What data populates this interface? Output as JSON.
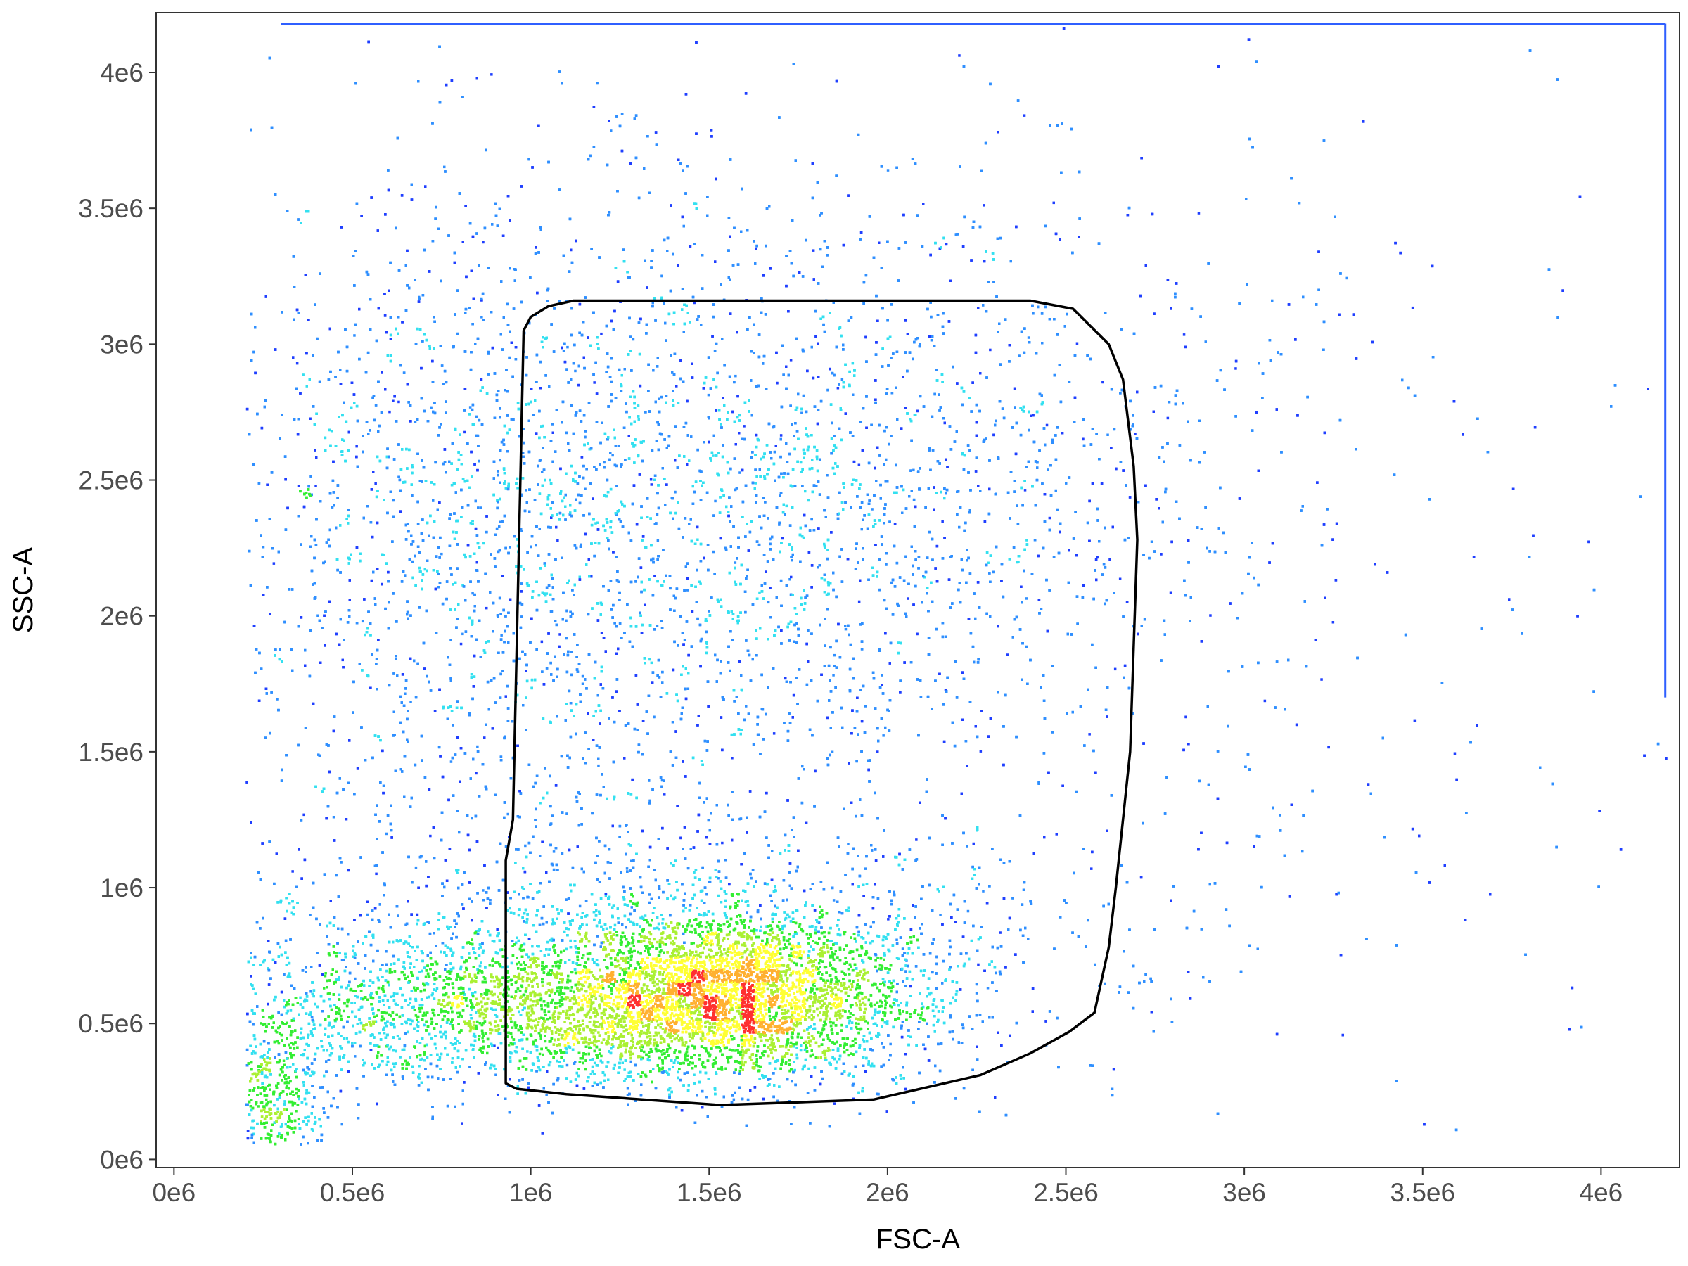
{
  "chart_data": {
    "type": "scatter",
    "subtype": "flow-cytometry-density-plot",
    "title": "",
    "xlabel": "FSC-A",
    "ylabel": "SSC-A",
    "xlim": [
      -50000.0,
      4220000.0
    ],
    "ylim": [
      -30000.0,
      4220000.0
    ],
    "grid": false,
    "legend": "none",
    "x_ticks": [
      {
        "value": 0,
        "label": "0e6"
      },
      {
        "value": 500000,
        "label": "0.5e6"
      },
      {
        "value": 1000000,
        "label": "1e6"
      },
      {
        "value": 1500000,
        "label": "1.5e6"
      },
      {
        "value": 2000000,
        "label": "2e6"
      },
      {
        "value": 2500000,
        "label": "2.5e6"
      },
      {
        "value": 3000000,
        "label": "3e6"
      },
      {
        "value": 3500000,
        "label": "3.5e6"
      },
      {
        "value": 4000000,
        "label": "4e6"
      }
    ],
    "y_ticks": [
      {
        "value": 0,
        "label": "0e6"
      },
      {
        "value": 500000,
        "label": "0.5e6"
      },
      {
        "value": 1000000,
        "label": "1e6"
      },
      {
        "value": 1500000,
        "label": "1.5e6"
      },
      {
        "value": 2000000,
        "label": "2e6"
      },
      {
        "value": 2500000,
        "label": "2.5e6"
      },
      {
        "value": 3000000,
        "label": "3e6"
      },
      {
        "value": 3500000,
        "label": "3.5e6"
      },
      {
        "value": 4000000,
        "label": "4e6"
      }
    ],
    "density_colors": [
      "#1f3fff",
      "#2f8fff",
      "#33e0f0",
      "#33ee33",
      "#aaf033",
      "#ffff33",
      "#ffb030",
      "#ff3030"
    ],
    "populations": [
      {
        "cx": 1580000,
        "cy": 620000,
        "sx": 230000,
        "sy": 160000,
        "weight": 0.22
      },
      {
        "cx": 1100000,
        "cy": 560000,
        "sx": 480000,
        "sy": 130000,
        "weight": 0.26
      },
      {
        "cx": 1300000,
        "cy": 800000,
        "sx": 650000,
        "sy": 250000,
        "weight": 0.12
      },
      {
        "cx": 260000,
        "cy": 220000,
        "sx": 90000,
        "sy": 150000,
        "weight": 0.05
      },
      {
        "cx": 1550000,
        "cy": 2400000,
        "sx": 650000,
        "sy": 560000,
        "weight": 0.23
      },
      {
        "cx": 750000,
        "cy": 2300000,
        "sx": 320000,
        "sy": 700000,
        "weight": 0.07
      },
      {
        "cx": 2300000,
        "cy": 2300000,
        "sx": 1200000,
        "sy": 1000000,
        "weight": 0.05
      }
    ],
    "saturation_lines": [
      {
        "axis": "y",
        "value": 4180000,
        "from": 300000,
        "to": 4180000
      },
      {
        "axis": "x",
        "value": 4180000,
        "from": 1700000,
        "to": 4180000
      }
    ],
    "gate": {
      "name": "",
      "points": [
        [
          980000,
          3050000
        ],
        [
          1000000,
          3100000
        ],
        [
          1050000,
          3140000
        ],
        [
          1120000,
          3160000
        ],
        [
          2400000,
          3160000
        ],
        [
          2520000,
          3130000
        ],
        [
          2620000,
          3000000
        ],
        [
          2660000,
          2870000
        ],
        [
          2690000,
          2550000
        ],
        [
          2700000,
          2280000
        ],
        [
          2680000,
          1500000
        ],
        [
          2640000,
          1000000
        ],
        [
          2620000,
          780000
        ],
        [
          2580000,
          540000
        ],
        [
          2510000,
          470000
        ],
        [
          2400000,
          390000
        ],
        [
          2260000,
          310000
        ],
        [
          1960000,
          220000
        ],
        [
          1530000,
          200000
        ],
        [
          1100000,
          240000
        ],
        [
          960000,
          260000
        ],
        [
          930000,
          280000
        ],
        [
          930000,
          1100000
        ],
        [
          950000,
          1250000
        ]
      ]
    }
  }
}
